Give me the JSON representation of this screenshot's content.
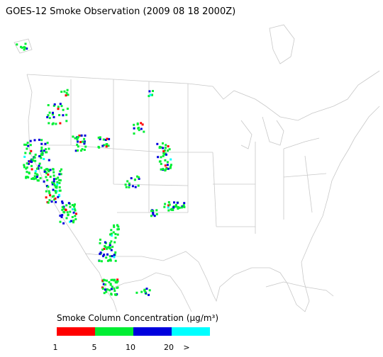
{
  "title": "GOES-12 Smoke Observation (2009 08 18  2000Z)",
  "legend": {
    "title": "Smoke Column Concentration (μg/m³)",
    "bins": [
      {
        "color": "#ff0000"
      },
      {
        "color": "#00ee33"
      },
      {
        "color": "#0000dd"
      },
      {
        "color": "#00ffff"
      }
    ],
    "ticks": [
      "1",
      "5",
      "10",
      "20",
      ">"
    ]
  }
}
